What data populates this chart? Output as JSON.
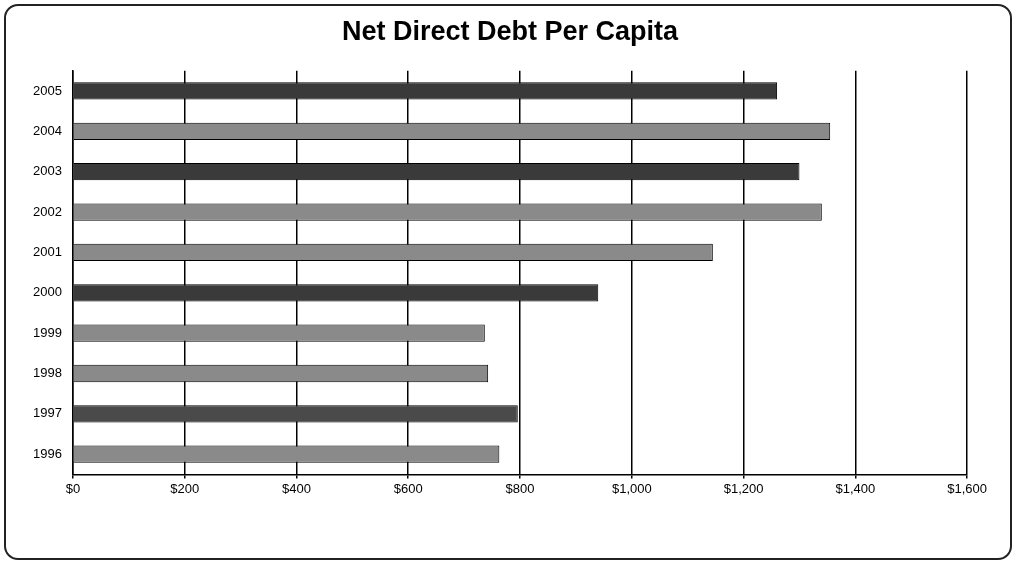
{
  "chart_data": {
    "type": "bar",
    "title": "Net Direct Debt Per Capita",
    "orientation": "horizontal",
    "categories": [
      "2005",
      "2004",
      "2003",
      "2002",
      "2001",
      "2000",
      "1999",
      "1998",
      "1997",
      "1996"
    ],
    "values": [
      1260,
      1355,
      1300,
      1340,
      1145,
      940,
      737,
      743,
      796,
      763
    ],
    "colors": [
      "#3a3a3a",
      "#8a8a8a",
      "#3a3a3a",
      "#8a8a8a",
      "#8a8a8a",
      "#3a3a3a",
      "#8a8a8a",
      "#8a8a8a",
      "#4a4a4a",
      "#8a8a8a"
    ],
    "xlim": [
      0,
      1600
    ],
    "xticks": [
      {
        "value": 0,
        "label": "$0"
      },
      {
        "value": 200,
        "label": "$200"
      },
      {
        "value": 400,
        "label": "$400"
      },
      {
        "value": 600,
        "label": "$600"
      },
      {
        "value": 800,
        "label": "$800"
      },
      {
        "value": 1000,
        "label": "$1,000"
      },
      {
        "value": 1200,
        "label": "$1,200"
      },
      {
        "value": 1400,
        "label": "$1,400"
      },
      {
        "value": 1600,
        "label": "$1,600"
      }
    ],
    "grid": "x"
  }
}
